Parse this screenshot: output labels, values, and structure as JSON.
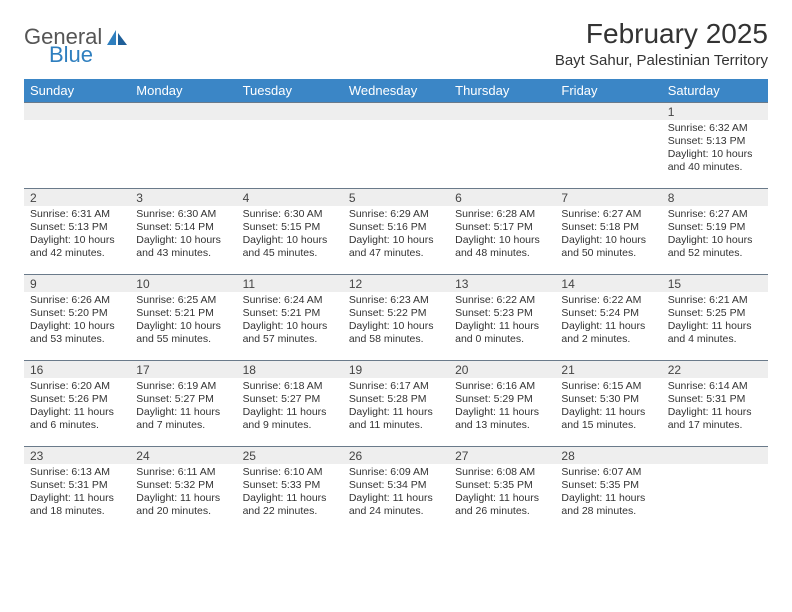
{
  "brand": {
    "word1": "General",
    "word2": "Blue"
  },
  "title": "February 2025",
  "location": "Bayt Sahur, Palestinian Territory",
  "colors": {
    "header_bg": "#3b86c6",
    "header_text": "#ffffff",
    "daynum_bg": "#eeeeee",
    "row_border": "#6a7a8a",
    "brand_blue": "#2f7fbf"
  },
  "daysOfWeek": [
    "Sunday",
    "Monday",
    "Tuesday",
    "Wednesday",
    "Thursday",
    "Friday",
    "Saturday"
  ],
  "weeks": [
    [
      {
        "n": "",
        "lines": []
      },
      {
        "n": "",
        "lines": []
      },
      {
        "n": "",
        "lines": []
      },
      {
        "n": "",
        "lines": []
      },
      {
        "n": "",
        "lines": []
      },
      {
        "n": "",
        "lines": []
      },
      {
        "n": "1",
        "lines": [
          "Sunrise: 6:32 AM",
          "Sunset: 5:13 PM",
          "Daylight: 10 hours and 40 minutes."
        ]
      }
    ],
    [
      {
        "n": "2",
        "lines": [
          "Sunrise: 6:31 AM",
          "Sunset: 5:13 PM",
          "Daylight: 10 hours and 42 minutes."
        ]
      },
      {
        "n": "3",
        "lines": [
          "Sunrise: 6:30 AM",
          "Sunset: 5:14 PM",
          "Daylight: 10 hours and 43 minutes."
        ]
      },
      {
        "n": "4",
        "lines": [
          "Sunrise: 6:30 AM",
          "Sunset: 5:15 PM",
          "Daylight: 10 hours and 45 minutes."
        ]
      },
      {
        "n": "5",
        "lines": [
          "Sunrise: 6:29 AM",
          "Sunset: 5:16 PM",
          "Daylight: 10 hours and 47 minutes."
        ]
      },
      {
        "n": "6",
        "lines": [
          "Sunrise: 6:28 AM",
          "Sunset: 5:17 PM",
          "Daylight: 10 hours and 48 minutes."
        ]
      },
      {
        "n": "7",
        "lines": [
          "Sunrise: 6:27 AM",
          "Sunset: 5:18 PM",
          "Daylight: 10 hours and 50 minutes."
        ]
      },
      {
        "n": "8",
        "lines": [
          "Sunrise: 6:27 AM",
          "Sunset: 5:19 PM",
          "Daylight: 10 hours and 52 minutes."
        ]
      }
    ],
    [
      {
        "n": "9",
        "lines": [
          "Sunrise: 6:26 AM",
          "Sunset: 5:20 PM",
          "Daylight: 10 hours and 53 minutes."
        ]
      },
      {
        "n": "10",
        "lines": [
          "Sunrise: 6:25 AM",
          "Sunset: 5:21 PM",
          "Daylight: 10 hours and 55 minutes."
        ]
      },
      {
        "n": "11",
        "lines": [
          "Sunrise: 6:24 AM",
          "Sunset: 5:21 PM",
          "Daylight: 10 hours and 57 minutes."
        ]
      },
      {
        "n": "12",
        "lines": [
          "Sunrise: 6:23 AM",
          "Sunset: 5:22 PM",
          "Daylight: 10 hours and 58 minutes."
        ]
      },
      {
        "n": "13",
        "lines": [
          "Sunrise: 6:22 AM",
          "Sunset: 5:23 PM",
          "Daylight: 11 hours and 0 minutes."
        ]
      },
      {
        "n": "14",
        "lines": [
          "Sunrise: 6:22 AM",
          "Sunset: 5:24 PM",
          "Daylight: 11 hours and 2 minutes."
        ]
      },
      {
        "n": "15",
        "lines": [
          "Sunrise: 6:21 AM",
          "Sunset: 5:25 PM",
          "Daylight: 11 hours and 4 minutes."
        ]
      }
    ],
    [
      {
        "n": "16",
        "lines": [
          "Sunrise: 6:20 AM",
          "Sunset: 5:26 PM",
          "Daylight: 11 hours and 6 minutes."
        ]
      },
      {
        "n": "17",
        "lines": [
          "Sunrise: 6:19 AM",
          "Sunset: 5:27 PM",
          "Daylight: 11 hours and 7 minutes."
        ]
      },
      {
        "n": "18",
        "lines": [
          "Sunrise: 6:18 AM",
          "Sunset: 5:27 PM",
          "Daylight: 11 hours and 9 minutes."
        ]
      },
      {
        "n": "19",
        "lines": [
          "Sunrise: 6:17 AM",
          "Sunset: 5:28 PM",
          "Daylight: 11 hours and 11 minutes."
        ]
      },
      {
        "n": "20",
        "lines": [
          "Sunrise: 6:16 AM",
          "Sunset: 5:29 PM",
          "Daylight: 11 hours and 13 minutes."
        ]
      },
      {
        "n": "21",
        "lines": [
          "Sunrise: 6:15 AM",
          "Sunset: 5:30 PM",
          "Daylight: 11 hours and 15 minutes."
        ]
      },
      {
        "n": "22",
        "lines": [
          "Sunrise: 6:14 AM",
          "Sunset: 5:31 PM",
          "Daylight: 11 hours and 17 minutes."
        ]
      }
    ],
    [
      {
        "n": "23",
        "lines": [
          "Sunrise: 6:13 AM",
          "Sunset: 5:31 PM",
          "Daylight: 11 hours and 18 minutes."
        ]
      },
      {
        "n": "24",
        "lines": [
          "Sunrise: 6:11 AM",
          "Sunset: 5:32 PM",
          "Daylight: 11 hours and 20 minutes."
        ]
      },
      {
        "n": "25",
        "lines": [
          "Sunrise: 6:10 AM",
          "Sunset: 5:33 PM",
          "Daylight: 11 hours and 22 minutes."
        ]
      },
      {
        "n": "26",
        "lines": [
          "Sunrise: 6:09 AM",
          "Sunset: 5:34 PM",
          "Daylight: 11 hours and 24 minutes."
        ]
      },
      {
        "n": "27",
        "lines": [
          "Sunrise: 6:08 AM",
          "Sunset: 5:35 PM",
          "Daylight: 11 hours and 26 minutes."
        ]
      },
      {
        "n": "28",
        "lines": [
          "Sunrise: 6:07 AM",
          "Sunset: 5:35 PM",
          "Daylight: 11 hours and 28 minutes."
        ]
      },
      {
        "n": "",
        "lines": []
      }
    ]
  ]
}
